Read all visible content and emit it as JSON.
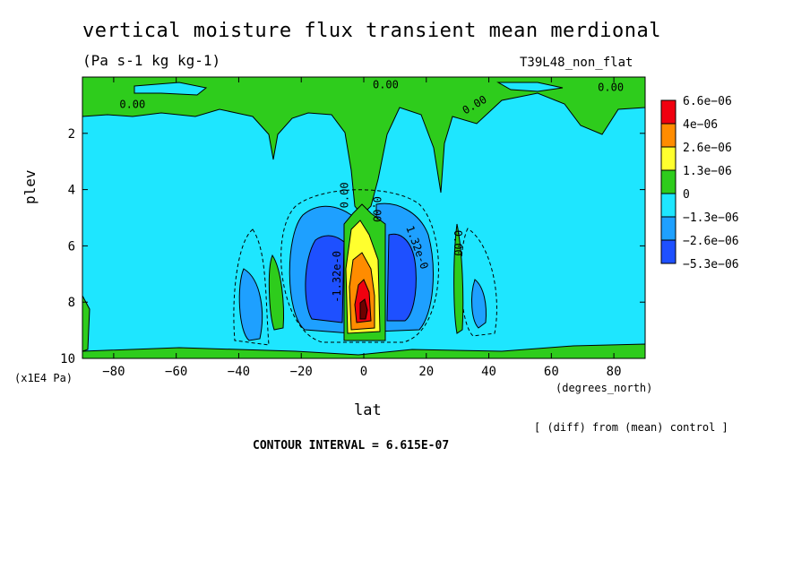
{
  "header": {
    "title": "vertical moisture flux transient mean merdional",
    "units": "(Pa s-1 kg kg-1)",
    "run_id": "T39L48_non_flat"
  },
  "footer": {
    "diff_note": "[ (diff) from (mean) control ]",
    "contour_interval": "CONTOUR INTERVAL = 6.615E-07"
  },
  "chart_data": {
    "type": "heatmap",
    "title": "vertical moisture flux transient mean merdional",
    "xlabel": "lat",
    "xunits": "(degrees_north)",
    "ylabel": "plev",
    "yunits": "(x1E4 Pa)",
    "xlim": [
      -90,
      90
    ],
    "ylim": [
      10,
      0
    ],
    "x_ticks": [
      -80,
      -60,
      -40,
      -20,
      0,
      20,
      40,
      60,
      80
    ],
    "x_tick_labels": [
      "−80",
      "−60",
      "−40",
      "−20",
      "0",
      "20",
      "40",
      "60",
      "80"
    ],
    "y_ticks": [
      2,
      4,
      6,
      8,
      10
    ],
    "y_tick_labels": [
      "2",
      "4",
      "6",
      "8",
      "10"
    ],
    "colorbar": {
      "levels": [
        "6.6e−06",
        "4e−06",
        "2.6e−06",
        "1.3e−06",
        "0",
        "−1.3e−06",
        "−2.6e−06",
        "−5.3e−06"
      ],
      "colors": [
        "#f0000f",
        "#ff8c00",
        "#ffff2e",
        "#2ecc1c",
        "#1ee6ff",
        "#1ea0ff",
        "#1e50ff"
      ]
    },
    "contour_labels": [
      {
        "text": "0.00",
        "x": -74,
        "y": 1.1,
        "angle": 0
      },
      {
        "text": "0.00",
        "x": 7,
        "y": 0.4,
        "angle": 0
      },
      {
        "text": "0.00",
        "x": 36,
        "y": 1.1,
        "angle": -30
      },
      {
        "text": "0.00",
        "x": 79,
        "y": 0.5,
        "angle": 0
      },
      {
        "text": "0.00",
        "x": -5,
        "y": 4.2,
        "angle": -90
      },
      {
        "text": "0.00",
        "x": 3,
        "y": 4.7,
        "angle": 90
      },
      {
        "text": "1.32e-0",
        "x": 16,
        "y": 6.1,
        "angle": 70
      },
      {
        "text": "0.00",
        "x": 29,
        "y": 5.9,
        "angle": 90
      },
      {
        "text": "-1.32e-0",
        "x": -7.5,
        "y": 7.1,
        "angle": -90
      }
    ],
    "grid": false,
    "legend": "right"
  }
}
